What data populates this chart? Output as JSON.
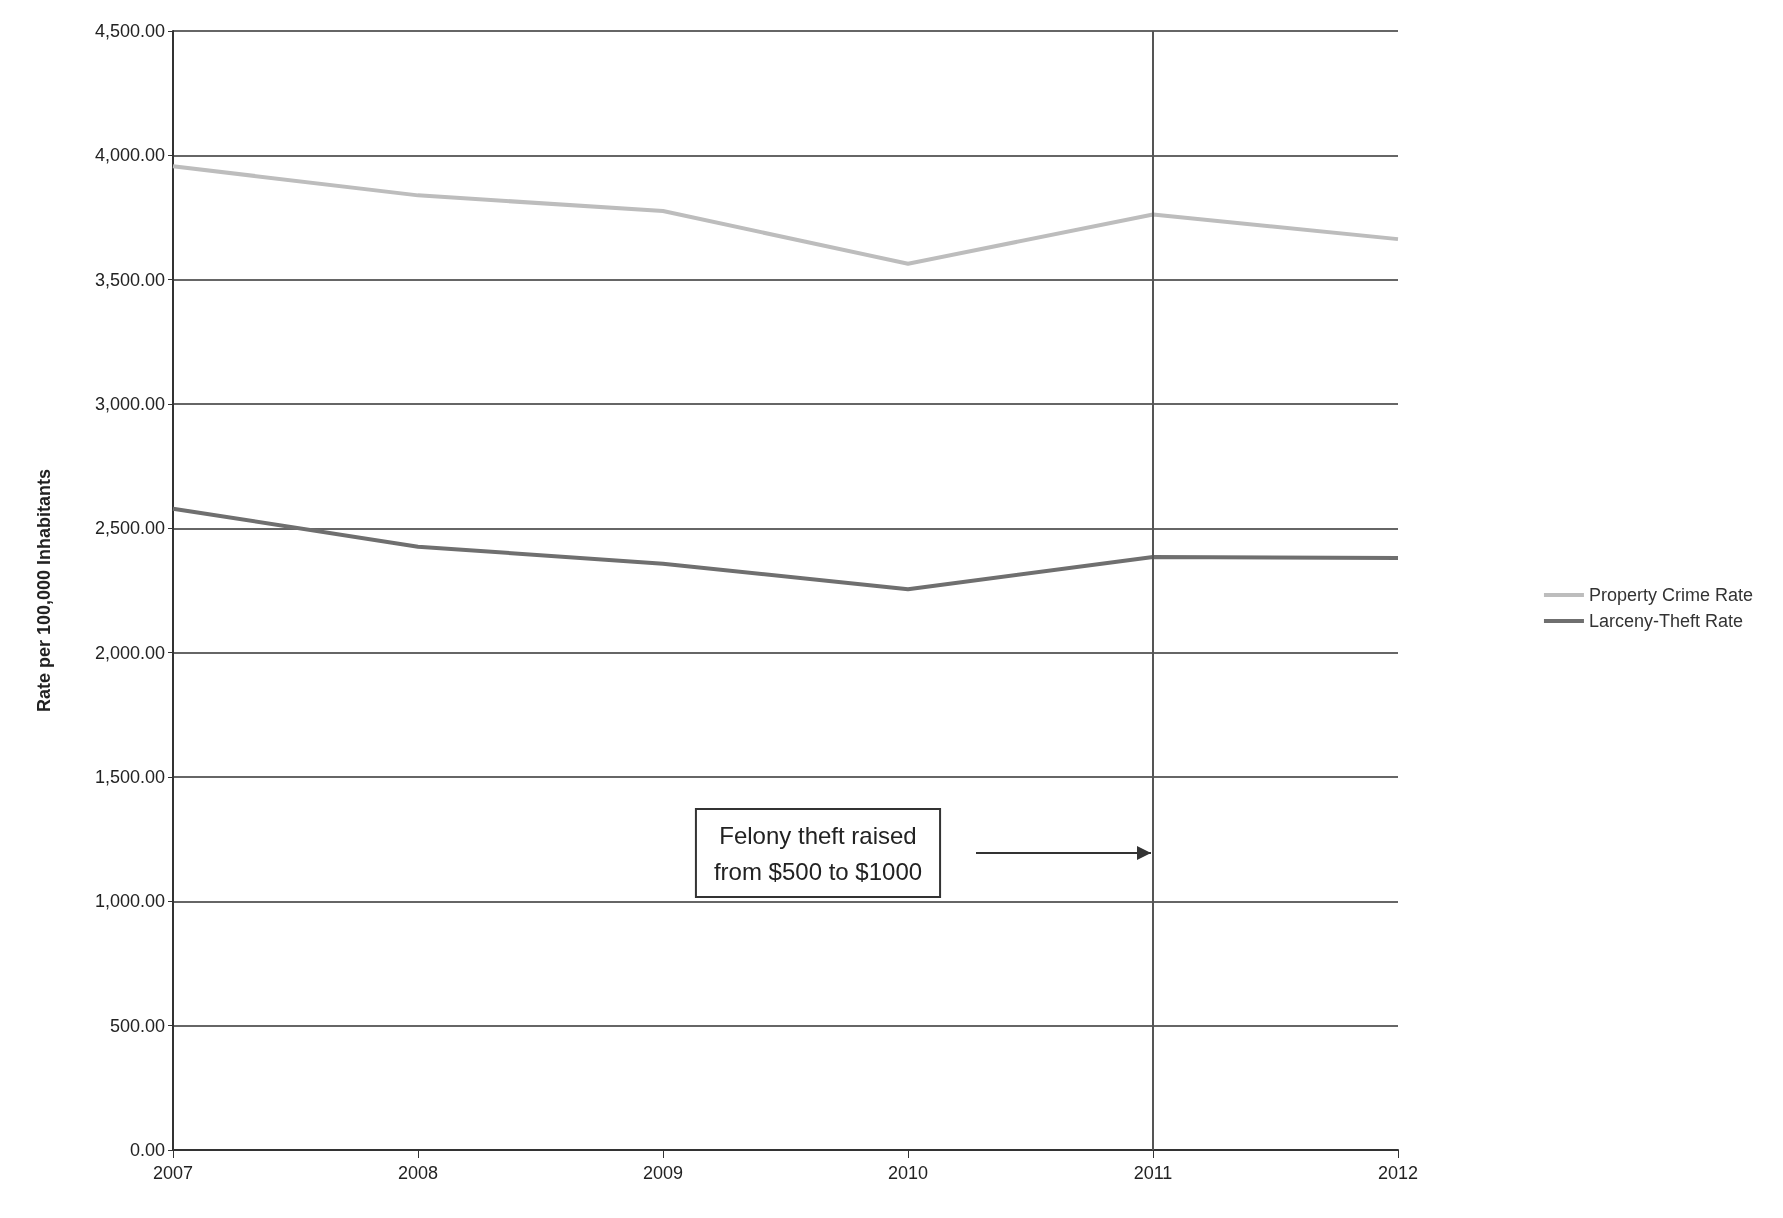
{
  "chart_data": {
    "type": "line",
    "ylabel": "Rate per 100,000 Inhabitants",
    "categories": [
      "2007",
      "2008",
      "2009",
      "2010",
      "2011",
      "2012"
    ],
    "series": [
      {
        "name": "Property Crime Rate",
        "color": "#bdbdbd",
        "values": [
          3956,
          3839,
          3776,
          3564,
          3762,
          3663
        ]
      },
      {
        "name": "Larceny-Theft Rate",
        "color": "#6f6f6f",
        "values": [
          2579,
          2426,
          2358,
          2255,
          2385,
          2381
        ]
      }
    ],
    "ylim": [
      0,
      4500
    ],
    "yticks": [
      {
        "value": 0,
        "label": "0.00"
      },
      {
        "value": 500,
        "label": "500.00"
      },
      {
        "value": 1000,
        "label": "1,000.00"
      },
      {
        "value": 1500,
        "label": "1,500.00"
      },
      {
        "value": 2000,
        "label": "2,000.00"
      },
      {
        "value": 2500,
        "label": "2,500.00"
      },
      {
        "value": 3000,
        "label": "3,000.00"
      },
      {
        "value": 3500,
        "label": "3,500.00"
      },
      {
        "value": 4000,
        "label": "4,000.00"
      },
      {
        "value": 4500,
        "label": "4,500.00"
      }
    ],
    "grid": "y",
    "legend": "right",
    "marker": "none",
    "line_style": "solid",
    "ref_lines": [
      {
        "axis": "x",
        "value": "2011",
        "color": "#555555"
      }
    ],
    "annotations": [
      "Felony theft raised\nfrom $500 to $1000"
    ]
  }
}
